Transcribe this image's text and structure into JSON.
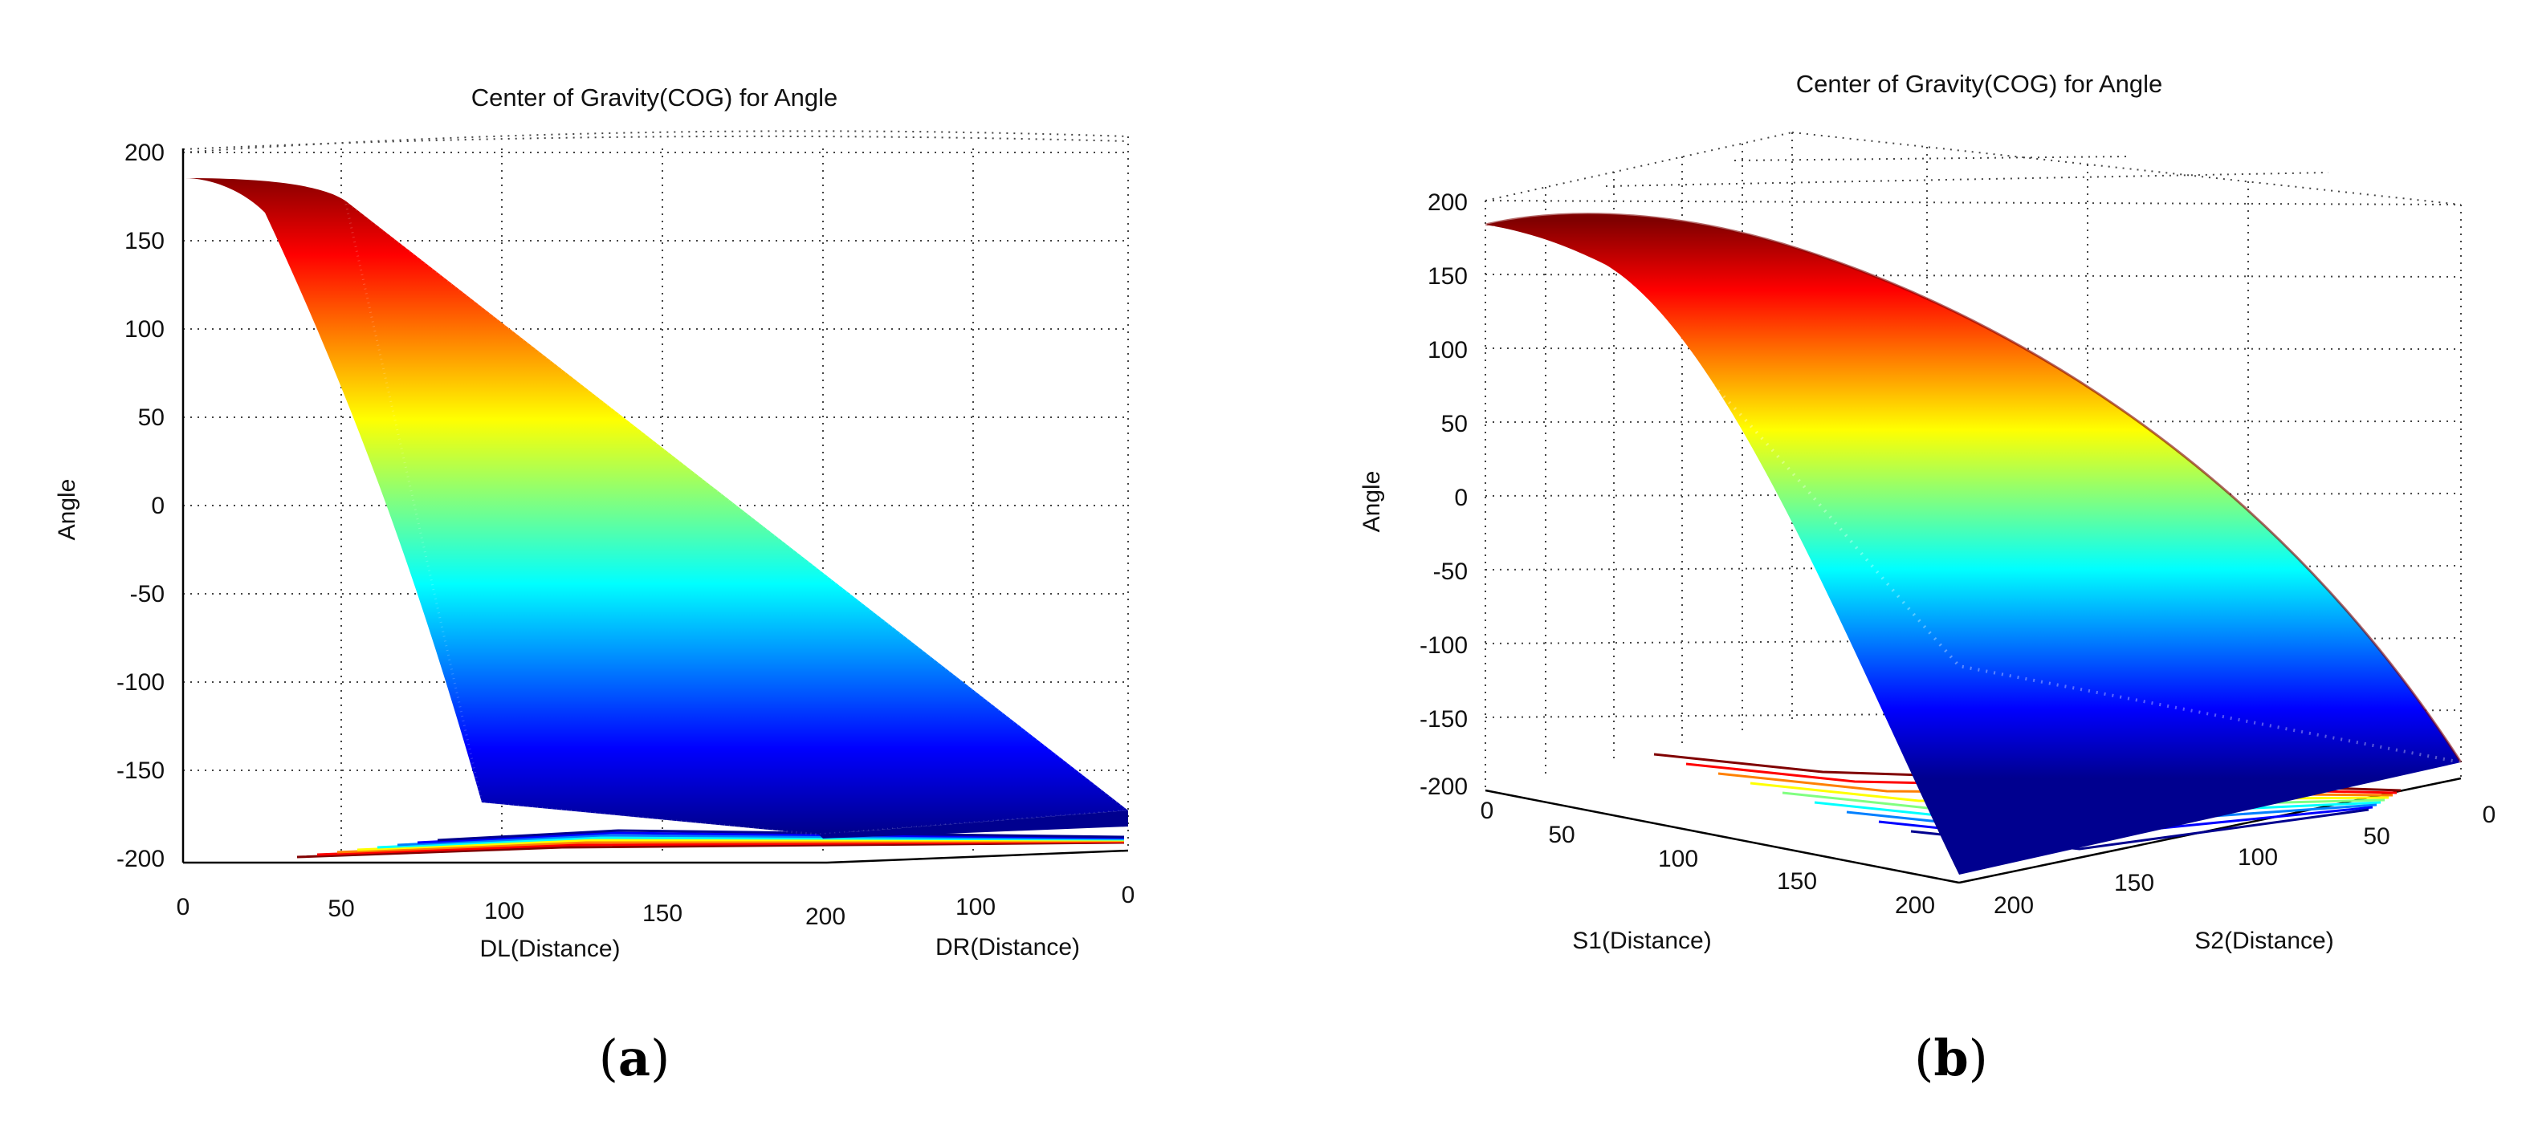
{
  "figure": {
    "caption_a_open": "(",
    "caption_a_letter": "a",
    "caption_a_close": ")",
    "caption_b_open": "(",
    "caption_b_letter": "b",
    "caption_b_close": ")"
  },
  "colormap": [
    "#00008f",
    "#0000ff",
    "#0080ff",
    "#00ffff",
    "#80ff80",
    "#ffff00",
    "#ff8000",
    "#ff0000",
    "#800000"
  ],
  "chart_data": [
    {
      "id": "a",
      "type": "surface3d",
      "title": "Center of Gravity(COG) for Angle",
      "zlabel": "Angle",
      "xlabel": "DL(Distance)",
      "ylabel": "DR(Distance)",
      "z_ticks": [
        "200",
        "150",
        "100",
        "50",
        "0",
        "-50",
        "-100",
        "-150",
        "-200"
      ],
      "x_ticks": [
        "0",
        "50",
        "100",
        "150",
        "200"
      ],
      "y_ticks": [
        "100",
        "0"
      ],
      "zlim": [
        -200,
        200
      ],
      "xlim": [
        0,
        200
      ],
      "ylim": [
        0,
        200
      ],
      "z_max": 185,
      "z_min": -180,
      "contour_floor": true
    },
    {
      "id": "b",
      "type": "surface3d",
      "title": "Center of Gravity(COG) for Angle",
      "zlabel": "Angle",
      "xlabel": "S1(Distance)",
      "ylabel": "S2(Distance)",
      "z_ticks": [
        "200",
        "150",
        "100",
        "50",
        "0",
        "-50",
        "-100",
        "-150",
        "-200"
      ],
      "x_ticks": [
        "0",
        "50",
        "100",
        "150",
        "200"
      ],
      "y_ticks": [
        "200",
        "150",
        "100",
        "50",
        "0"
      ],
      "zlim": [
        -200,
        200
      ],
      "xlim": [
        0,
        200
      ],
      "ylim": [
        0,
        200
      ],
      "z_max": 185,
      "z_min": -180,
      "contour_floor": true
    }
  ]
}
